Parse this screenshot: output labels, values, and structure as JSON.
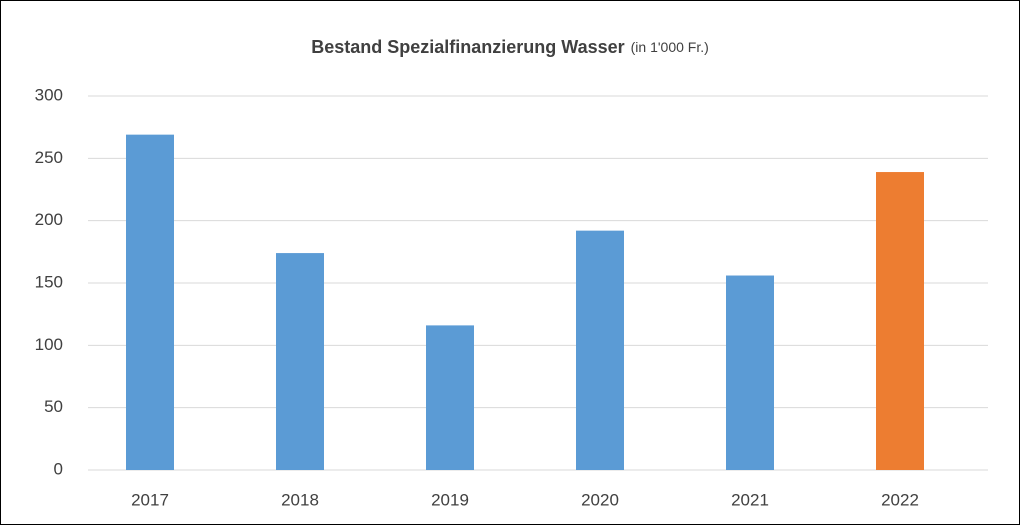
{
  "chart_data": {
    "type": "bar",
    "title": "Bestand Spezialfinanzierung Wasser",
    "title_note": "(in 1'000 Fr.)",
    "categories": [
      "2017",
      "2018",
      "2019",
      "2020",
      "2021",
      "2022"
    ],
    "values": [
      269,
      174,
      116,
      192,
      156,
      239
    ],
    "colors": [
      "#5b9bd5",
      "#5b9bd5",
      "#5b9bd5",
      "#5b9bd5",
      "#5b9bd5",
      "#ed7d31"
    ],
    "ylim": [
      0,
      300
    ],
    "yticks": [
      0,
      50,
      100,
      150,
      200,
      250,
      300
    ],
    "grid": true
  }
}
